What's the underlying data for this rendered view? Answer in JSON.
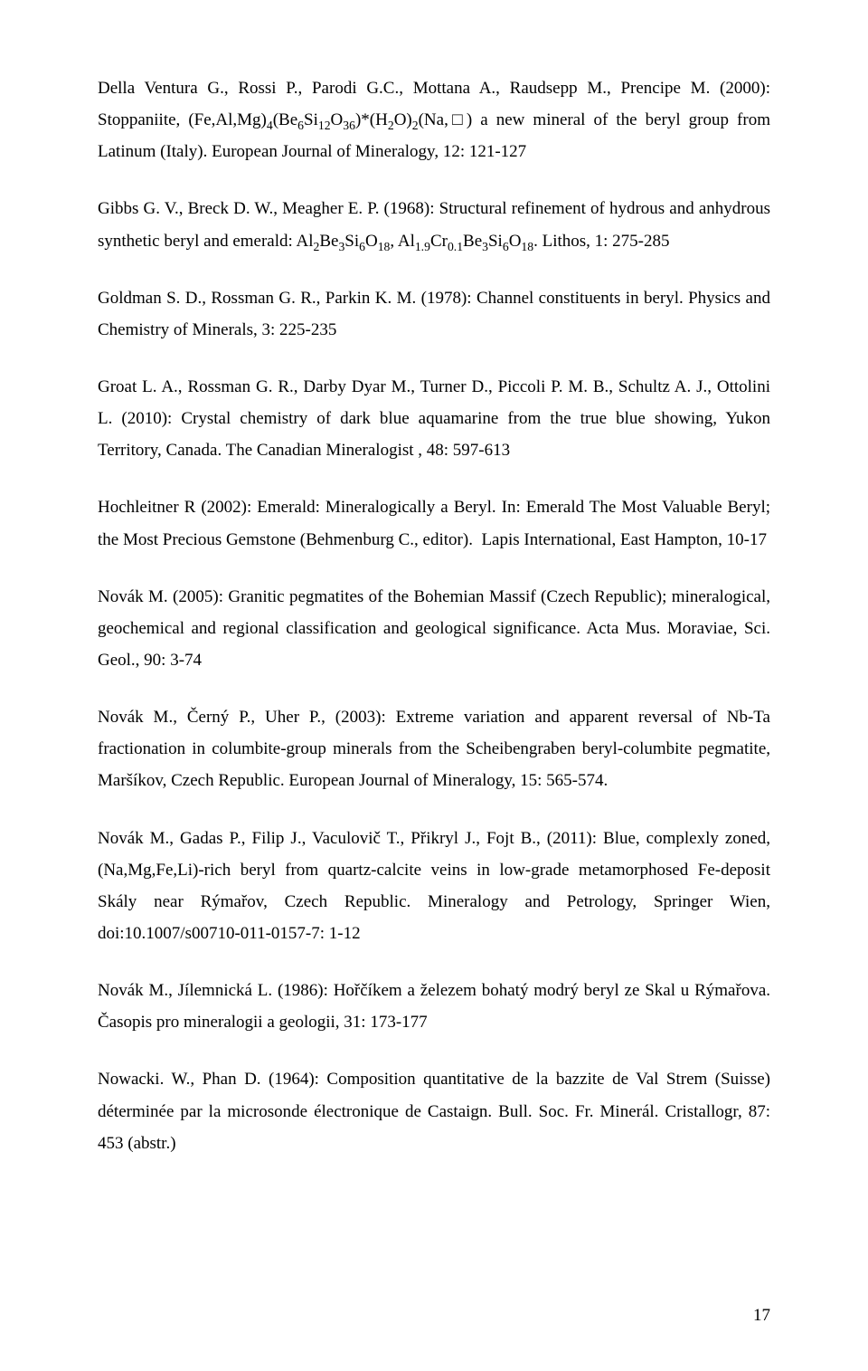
{
  "refs": [
    {
      "html": "Della Ventura G., Rossi P., Parodi G.C., Mottana A., Raudsepp M., Prencipe M. (2000): Stoppaniite, (Fe,Al,Mg)<span class=\"sub\">4</span>(Be<span class=\"sub\">6</span>Si<span class=\"sub\">12</span>O<span class=\"sub\">36</span>)*(H<span class=\"sub\">2</span>O)<span class=\"sub\">2</span>(Na,□) a new mineral of the beryl group from Latinum (Italy). European Journal of Mineralogy, 12: 121-127"
    },
    {
      "html": "Gibbs G. V., Breck D. W., Meagher E. P. (1968): Structural refinement of hydrous and anhydrous synthetic beryl and emerald: Al<span class=\"sub\">2</span>Be<span class=\"sub\">3</span>Si<span class=\"sub\">6</span>O<span class=\"sub\">18</span>, Al<span class=\"sub\">1.9</span>Cr<span class=\"sub\">0.1</span>Be<span class=\"sub\">3</span>Si<span class=\"sub\">6</span>O<span class=\"sub\">18</span>. Lithos, 1: 275-285"
    },
    {
      "html": "Goldman S. D., Rossman G. R., Parkin K. M. (1978): Channel constituents in beryl. Physics and Chemistry of Minerals, 3: 225-235"
    },
    {
      "html": "Groat L. A., Rossman G. R., Darby Dyar M., Turner D., Piccoli P. M. B., Schultz A. J., Ottolini L. (2010): Crystal chemistry of dark blue aquamarine from the true blue showing, Yukon Territory, Canada. The Canadian Mineralogist , 48: 597-613"
    },
    {
      "html": "Hochleitner R (2002): Emerald: Mineralogically a Beryl. In: Emerald The Most Valuable Beryl; the Most Precious Gemstone (Behmenburg C., editor).&nbsp;&nbsp;Lapis International, East Hampton, 10-17"
    },
    {
      "html": "Novák M. (2005): Granitic pegmatites of the Bohemian Massif (Czech Republic); mineralogical, geochemical and regional classification and geological significance. Acta Mus. Moraviae, Sci. Geol., 90: 3-74"
    },
    {
      "html": "Novák M., Černý P., Uher P., (2003): Extreme variation and apparent reversal of Nb-Ta fractionation in columbite-group minerals from the Scheibengraben beryl-columbite pegmatite, Maršíkov, Czech Republic. European Journal of Mineralogy, 15: 565-574."
    },
    {
      "html": "Novák M., Gadas P., Filip J., Vaculovič T., Přikryl J., Fojt B., (2011): Blue, complexly zoned, (Na,Mg,Fe,Li)-rich beryl from quartz-calcite veins in low-grade metamorphosed Fe-deposit Skály near Rýmařov, Czech Republic. Mineralogy and Petrology, Springer Wien, doi:10.1007/s00710-011-0157-7: 1-12"
    },
    {
      "html": "Novák M., Jílemnická L. (1986): Hořčíkem a železem bohatý modrý beryl ze Skal u Rýmařova. Časopis pro mineralogii a geologii, 31: 173-177"
    },
    {
      "html": "Nowacki. W., Phan D. (1964): Composition quantitative de la bazzite de Val Strem (Suisse) déterminée par la microsonde électronique de Castaign. Bull. Soc. Fr. Minerál. Cristallogr, 87: 453 (abstr.)"
    }
  ],
  "page_number": "17"
}
